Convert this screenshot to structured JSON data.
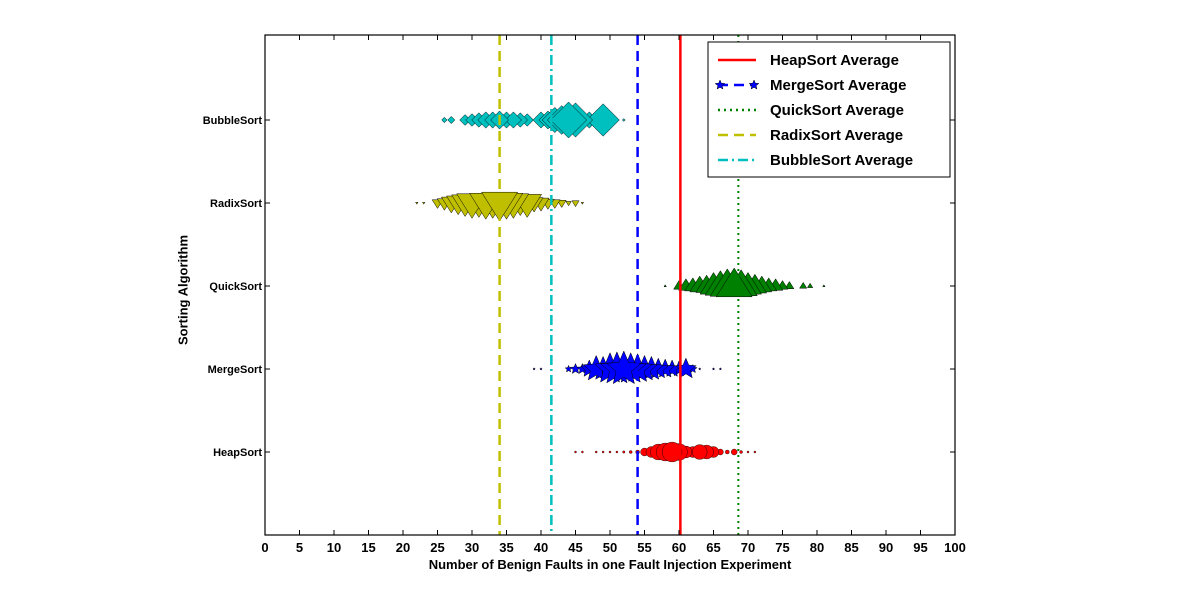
{
  "chart_data": {
    "type": "scatter",
    "xlabel": "Number of Benign Faults in one Fault Injection Experiment",
    "ylabel": "Sorting Algorithm",
    "xlim": [
      0,
      100
    ],
    "xticks": [
      "0",
      "5",
      "10",
      "15",
      "20",
      "25",
      "30",
      "35",
      "40",
      "45",
      "50",
      "55",
      "60",
      "65",
      "70",
      "75",
      "80",
      "85",
      "90",
      "95",
      "100"
    ],
    "categories": [
      "HeapSort",
      "MergeSort",
      "QuickSort",
      "RadixSort",
      "BubbleSort"
    ],
    "legend_position": "top-right",
    "grid": false,
    "series": [
      {
        "name": "HeapSort",
        "category": "HeapSort",
        "marker": "circle",
        "color": "#ff0000",
        "average": 60.2,
        "average_label": "HeapSort Average",
        "average_style": "solid",
        "points": [
          {
            "x": 45,
            "w": 0.05
          },
          {
            "x": 46,
            "w": 0.05
          },
          {
            "x": 48,
            "w": 0.08
          },
          {
            "x": 49,
            "w": 0.08
          },
          {
            "x": 50,
            "w": 0.1
          },
          {
            "x": 51,
            "w": 0.1
          },
          {
            "x": 52,
            "w": 0.12
          },
          {
            "x": 53,
            "w": 0.15
          },
          {
            "x": 54,
            "w": 0.2
          },
          {
            "x": 55,
            "w": 0.4
          },
          {
            "x": 56,
            "w": 0.55
          },
          {
            "x": 57,
            "w": 0.8
          },
          {
            "x": 58,
            "w": 0.9
          },
          {
            "x": 59,
            "w": 1.0
          },
          {
            "x": 60,
            "w": 0.85
          },
          {
            "x": 61,
            "w": 0.6
          },
          {
            "x": 62,
            "w": 0.55
          },
          {
            "x": 63,
            "w": 0.75
          },
          {
            "x": 64,
            "w": 0.7
          },
          {
            "x": 65,
            "w": 0.55
          },
          {
            "x": 66,
            "w": 0.3
          },
          {
            "x": 67,
            "w": 0.2
          },
          {
            "x": 68,
            "w": 0.3
          },
          {
            "x": 69,
            "w": 0.15
          },
          {
            "x": 70,
            "w": 0.08
          },
          {
            "x": 71,
            "w": 0.05
          }
        ]
      },
      {
        "name": "MergeSort",
        "category": "MergeSort",
        "marker": "star",
        "color": "#0000ff",
        "average": 54.0,
        "average_label": "MergeSort Average",
        "average_style": "dashed",
        "points": [
          {
            "x": 39,
            "w": 0.03
          },
          {
            "x": 40,
            "w": 0.03
          },
          {
            "x": 44,
            "w": 0.2
          },
          {
            "x": 45,
            "w": 0.3
          },
          {
            "x": 46,
            "w": 0.3
          },
          {
            "x": 47,
            "w": 0.5
          },
          {
            "x": 48,
            "w": 0.75
          },
          {
            "x": 49,
            "w": 0.7
          },
          {
            "x": 50,
            "w": 0.9
          },
          {
            "x": 51,
            "w": 0.95
          },
          {
            "x": 52,
            "w": 1.0
          },
          {
            "x": 53,
            "w": 0.9
          },
          {
            "x": 54,
            "w": 0.85
          },
          {
            "x": 55,
            "w": 0.75
          },
          {
            "x": 56,
            "w": 0.7
          },
          {
            "x": 57,
            "w": 0.6
          },
          {
            "x": 58,
            "w": 0.55
          },
          {
            "x": 59,
            "w": 0.5
          },
          {
            "x": 60,
            "w": 0.45
          },
          {
            "x": 61,
            "w": 0.6
          },
          {
            "x": 62,
            "w": 0.25
          },
          {
            "x": 63,
            "w": 0.05
          },
          {
            "x": 65,
            "w": 0.05
          },
          {
            "x": 66,
            "w": 0.03
          }
        ]
      },
      {
        "name": "QuickSort",
        "category": "QuickSort",
        "marker": "triangle-up",
        "color": "#008000",
        "average": 68.6,
        "average_label": "QuickSort Average",
        "average_style": "dotted",
        "points": [
          {
            "x": 58,
            "w": 0.05
          },
          {
            "x": 60,
            "w": 0.3
          },
          {
            "x": 61,
            "w": 0.4
          },
          {
            "x": 62,
            "w": 0.45
          },
          {
            "x": 63,
            "w": 0.55
          },
          {
            "x": 64,
            "w": 0.6
          },
          {
            "x": 65,
            "w": 0.75
          },
          {
            "x": 66,
            "w": 0.85
          },
          {
            "x": 67,
            "w": 0.95
          },
          {
            "x": 68,
            "w": 1.0
          },
          {
            "x": 69,
            "w": 0.9
          },
          {
            "x": 70,
            "w": 0.75
          },
          {
            "x": 71,
            "w": 0.65
          },
          {
            "x": 72,
            "w": 0.55
          },
          {
            "x": 73,
            "w": 0.45
          },
          {
            "x": 74,
            "w": 0.4
          },
          {
            "x": 75,
            "w": 0.3
          },
          {
            "x": 76,
            "w": 0.25
          },
          {
            "x": 78,
            "w": 0.2
          },
          {
            "x": 79,
            "w": 0.15
          },
          {
            "x": 81,
            "w": 0.05
          }
        ]
      },
      {
        "name": "RadixSort",
        "category": "RadixSort",
        "marker": "triangle-down",
        "color": "#bfbf00",
        "average": 34.0,
        "average_label": "RadixSort Average",
        "average_style": "dashed",
        "points": [
          {
            "x": 22,
            "w": 0.03
          },
          {
            "x": 23,
            "w": 0.03
          },
          {
            "x": 25,
            "w": 0.3
          },
          {
            "x": 26,
            "w": 0.4
          },
          {
            "x": 27,
            "w": 0.55
          },
          {
            "x": 28,
            "w": 0.65
          },
          {
            "x": 29,
            "w": 0.75
          },
          {
            "x": 30,
            "w": 0.85
          },
          {
            "x": 31,
            "w": 0.8
          },
          {
            "x": 32,
            "w": 0.9
          },
          {
            "x": 33,
            "w": 0.85
          },
          {
            "x": 34,
            "w": 1.0
          },
          {
            "x": 35,
            "w": 0.9
          },
          {
            "x": 36,
            "w": 0.85
          },
          {
            "x": 37,
            "w": 0.7
          },
          {
            "x": 38,
            "w": 0.8
          },
          {
            "x": 39,
            "w": 0.5
          },
          {
            "x": 40,
            "w": 0.45
          },
          {
            "x": 41,
            "w": 0.35
          },
          {
            "x": 42,
            "w": 0.3
          },
          {
            "x": 43,
            "w": 0.25
          },
          {
            "x": 44,
            "w": 0.15
          },
          {
            "x": 45,
            "w": 0.2
          },
          {
            "x": 46,
            "w": 0.05
          }
        ]
      },
      {
        "name": "BubbleSort",
        "category": "BubbleSort",
        "marker": "diamond",
        "color": "#00bfbf",
        "average": 41.5,
        "average_label": "BubbleSort Average",
        "average_style": "dashdot",
        "points": [
          {
            "x": 26,
            "w": 0.15
          },
          {
            "x": 27,
            "w": 0.2
          },
          {
            "x": 29,
            "w": 0.3
          },
          {
            "x": 30,
            "w": 0.35
          },
          {
            "x": 31,
            "w": 0.4
          },
          {
            "x": 32,
            "w": 0.45
          },
          {
            "x": 33,
            "w": 0.45
          },
          {
            "x": 34,
            "w": 0.5
          },
          {
            "x": 35,
            "w": 0.45
          },
          {
            "x": 36,
            "w": 0.45
          },
          {
            "x": 37,
            "w": 0.4
          },
          {
            "x": 38,
            "w": 0.35
          },
          {
            "x": 40,
            "w": 0.45
          },
          {
            "x": 41,
            "w": 0.5
          },
          {
            "x": 42,
            "w": 0.7
          },
          {
            "x": 43,
            "w": 0.8
          },
          {
            "x": 44,
            "w": 1.0
          },
          {
            "x": 45,
            "w": 0.95
          },
          {
            "x": 46,
            "w": 0.5
          },
          {
            "x": 47,
            "w": 0.45
          },
          {
            "x": 48,
            "w": 0.5
          },
          {
            "x": 49,
            "w": 0.9
          },
          {
            "x": 52,
            "w": 0.08
          }
        ]
      }
    ]
  }
}
